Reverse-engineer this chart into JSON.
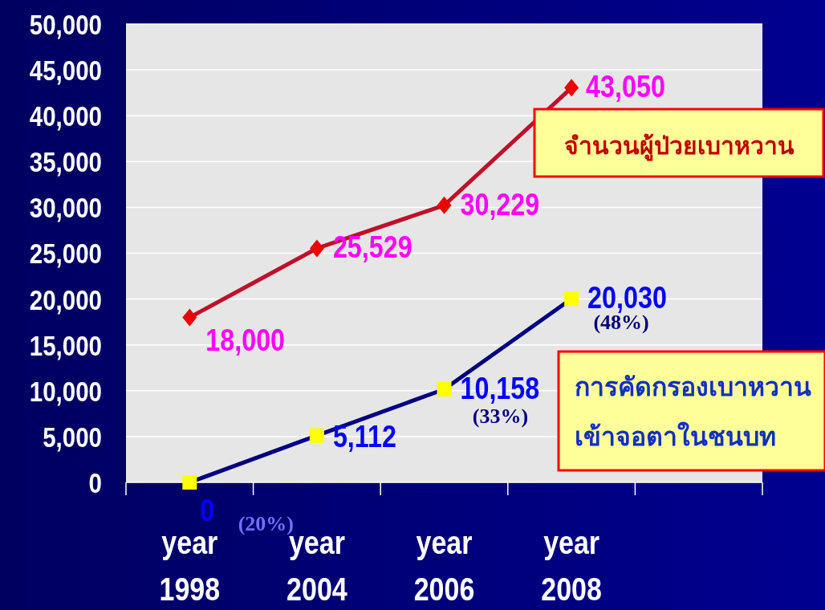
{
  "chart_data": {
    "type": "line",
    "categories": [
      "year 1998",
      "year 2004",
      "year 2006",
      "year 2008",
      null
    ],
    "ylim": [
      0,
      50000
    ],
    "yticks": [
      {
        "value": 0,
        "label": "0"
      },
      {
        "value": 5000,
        "label": "5,000"
      },
      {
        "value": 10000,
        "label": "10,000"
      },
      {
        "value": 15000,
        "label": "15,000"
      },
      {
        "value": 20000,
        "label": "20,000"
      },
      {
        "value": 25000,
        "label": "25,000"
      },
      {
        "value": 30000,
        "label": "30,000"
      },
      {
        "value": 35000,
        "label": "35,000"
      },
      {
        "value": 40000,
        "label": "40,000"
      },
      {
        "value": 45000,
        "label": "45,000"
      },
      {
        "value": 50000,
        "label": "50,000"
      }
    ],
    "grid": "y",
    "line_style": "solid",
    "series": [
      {
        "name": "จำนวนผู้ป่วยเบาหวาน",
        "color": "#c0102a",
        "colors": [
          "#ee0000",
          "#ee0000",
          "#ee0000",
          "#ee0000",
          null
        ],
        "marker": "diamond",
        "values": [
          18000,
          25529,
          30229,
          43050,
          null
        ],
        "value_labels": [
          "18,000",
          "25,529",
          "30,229",
          "43,050",
          null
        ]
      },
      {
        "name": "การคัดกรองเบาหวาน\nเข้าจอตาในชนบท",
        "color": "#000080",
        "colors": [
          "#ffff00",
          "#ffff00",
          "#ffff00",
          "#ffff00",
          null
        ],
        "marker": "square",
        "values": [
          0,
          5112,
          10158,
          20030,
          null
        ],
        "value_labels": [
          "0",
          "5,112",
          "10,158",
          "20,030",
          null
        ]
      }
    ],
    "annotations": [
      {
        "text": "(20%)",
        "x": "year 1998",
        "y": 0
      },
      {
        "text": "(33%)",
        "x": "year 2006",
        "y": 10158
      },
      {
        "text": "(48%)",
        "x": "year 2008",
        "y": 20030
      }
    ]
  }
}
